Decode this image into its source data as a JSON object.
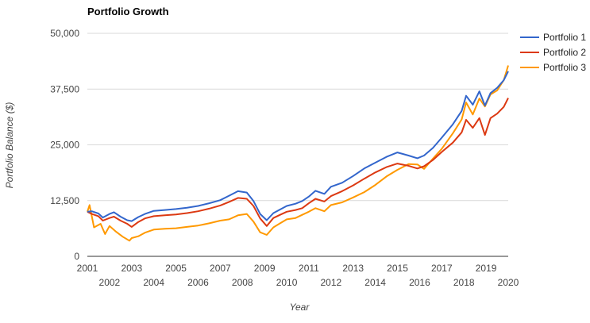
{
  "chart_data": {
    "type": "line",
    "title": "Portfolio Growth",
    "xlabel": "Year",
    "ylabel": "Portfolio Balance ($)",
    "xlim": [
      2001,
      2020
    ],
    "ylim": [
      0,
      50000
    ],
    "y_ticks": [
      0,
      12500,
      25000,
      37500,
      50000
    ],
    "y_tick_labels": [
      "0",
      "12,500",
      "25,000",
      "37,500",
      "50,000"
    ],
    "x_ticks_upper": [
      2001,
      2003,
      2005,
      2007,
      2009,
      2011,
      2013,
      2015,
      2017,
      2019
    ],
    "x_ticks_lower": [
      2002,
      2004,
      2006,
      2008,
      2010,
      2012,
      2014,
      2016,
      2018,
      2020
    ],
    "grid": true,
    "legend_position": "top-right",
    "series": [
      {
        "name": "Portfolio 1",
        "color": "#3366cc",
        "x": [
          2001,
          2001.2,
          2001.5,
          2001.7,
          2002,
          2002.2,
          2002.5,
          2002.8,
          2003,
          2003.3,
          2003.6,
          2004,
          2004.5,
          2005,
          2005.5,
          2006,
          2006.5,
          2007,
          2007.4,
          2007.8,
          2008.2,
          2008.5,
          2008.8,
          2009.1,
          2009.4,
          2009.7,
          2010,
          2010.4,
          2010.7,
          2011,
          2011.3,
          2011.7,
          2012,
          2012.5,
          2013,
          2013.5,
          2014,
          2014.5,
          2015,
          2015.5,
          2015.9,
          2016.2,
          2016.6,
          2017,
          2017.5,
          2017.9,
          2018.1,
          2018.4,
          2018.7,
          2018.95,
          2019.2,
          2019.5,
          2019.8,
          2020
        ],
        "values": [
          10000,
          10100,
          9600,
          8700,
          9500,
          9900,
          8900,
          8100,
          7900,
          8800,
          9500,
          10200,
          10400,
          10600,
          10900,
          11300,
          11900,
          12600,
          13600,
          14600,
          14300,
          12400,
          9500,
          8100,
          9700,
          10500,
          11300,
          11800,
          12400,
          13400,
          14700,
          14000,
          15600,
          16500,
          18000,
          19700,
          21000,
          22300,
          23300,
          22600,
          22000,
          22600,
          24300,
          26600,
          29600,
          32600,
          36000,
          34000,
          37000,
          33800,
          36600,
          37800,
          39500,
          41500
        ]
      },
      {
        "name": "Portfolio 2",
        "color": "#dc3912",
        "x": [
          2001,
          2001.2,
          2001.5,
          2001.7,
          2002,
          2002.2,
          2002.5,
          2002.8,
          2003,
          2003.3,
          2003.6,
          2004,
          2004.5,
          2005,
          2005.5,
          2006,
          2006.5,
          2007,
          2007.4,
          2007.8,
          2008.2,
          2008.5,
          2008.8,
          2009.1,
          2009.4,
          2009.7,
          2010,
          2010.4,
          2010.7,
          2011,
          2011.3,
          2011.7,
          2012,
          2012.5,
          2013,
          2013.5,
          2014,
          2014.5,
          2015,
          2015.5,
          2015.9,
          2016.2,
          2016.6,
          2017,
          2017.5,
          2017.9,
          2018.1,
          2018.4,
          2018.7,
          2018.95,
          2019.2,
          2019.5,
          2019.8,
          2020
        ],
        "values": [
          10000,
          9500,
          9000,
          8000,
          8600,
          8900,
          8000,
          7300,
          6600,
          7700,
          8500,
          9000,
          9200,
          9400,
          9700,
          10100,
          10700,
          11400,
          12200,
          13100,
          12900,
          11300,
          8500,
          6800,
          8600,
          9300,
          10000,
          10400,
          10800,
          11900,
          12900,
          12300,
          13500,
          14600,
          15900,
          17400,
          18800,
          20000,
          20800,
          20300,
          19700,
          20200,
          21600,
          23400,
          25500,
          27800,
          30600,
          28800,
          31000,
          27200,
          31000,
          32000,
          33500,
          35500
        ]
      },
      {
        "name": "Portfolio 3",
        "color": "#ff9900",
        "x": [
          2001,
          2001.1,
          2001.3,
          2001.6,
          2001.8,
          2002,
          2002.3,
          2002.6,
          2002.9,
          2003,
          2003.3,
          2003.6,
          2004,
          2004.5,
          2005,
          2005.5,
          2006,
          2006.5,
          2007,
          2007.4,
          2007.8,
          2008.2,
          2008.5,
          2008.8,
          2009.1,
          2009.4,
          2009.7,
          2010,
          2010.4,
          2010.7,
          2011,
          2011.3,
          2011.7,
          2012,
          2012.5,
          2013,
          2013.5,
          2014,
          2014.5,
          2015,
          2015.5,
          2015.9,
          2016.2,
          2016.6,
          2017,
          2017.5,
          2017.9,
          2018.1,
          2018.4,
          2018.7,
          2018.95,
          2019.2,
          2019.5,
          2019.8,
          2020
        ],
        "values": [
          10000,
          11500,
          6500,
          7300,
          5000,
          6800,
          5500,
          4400,
          3500,
          4100,
          4500,
          5300,
          6000,
          6200,
          6300,
          6600,
          6900,
          7400,
          8000,
          8300,
          9200,
          9500,
          7800,
          5400,
          4800,
          6500,
          7400,
          8300,
          8600,
          9300,
          10000,
          10800,
          10100,
          11500,
          12100,
          13200,
          14400,
          16000,
          17900,
          19400,
          20700,
          20600,
          19600,
          21900,
          24100,
          27600,
          30700,
          34500,
          31800,
          35400,
          33600,
          36300,
          37200,
          39500,
          42800
        ]
      }
    ]
  }
}
